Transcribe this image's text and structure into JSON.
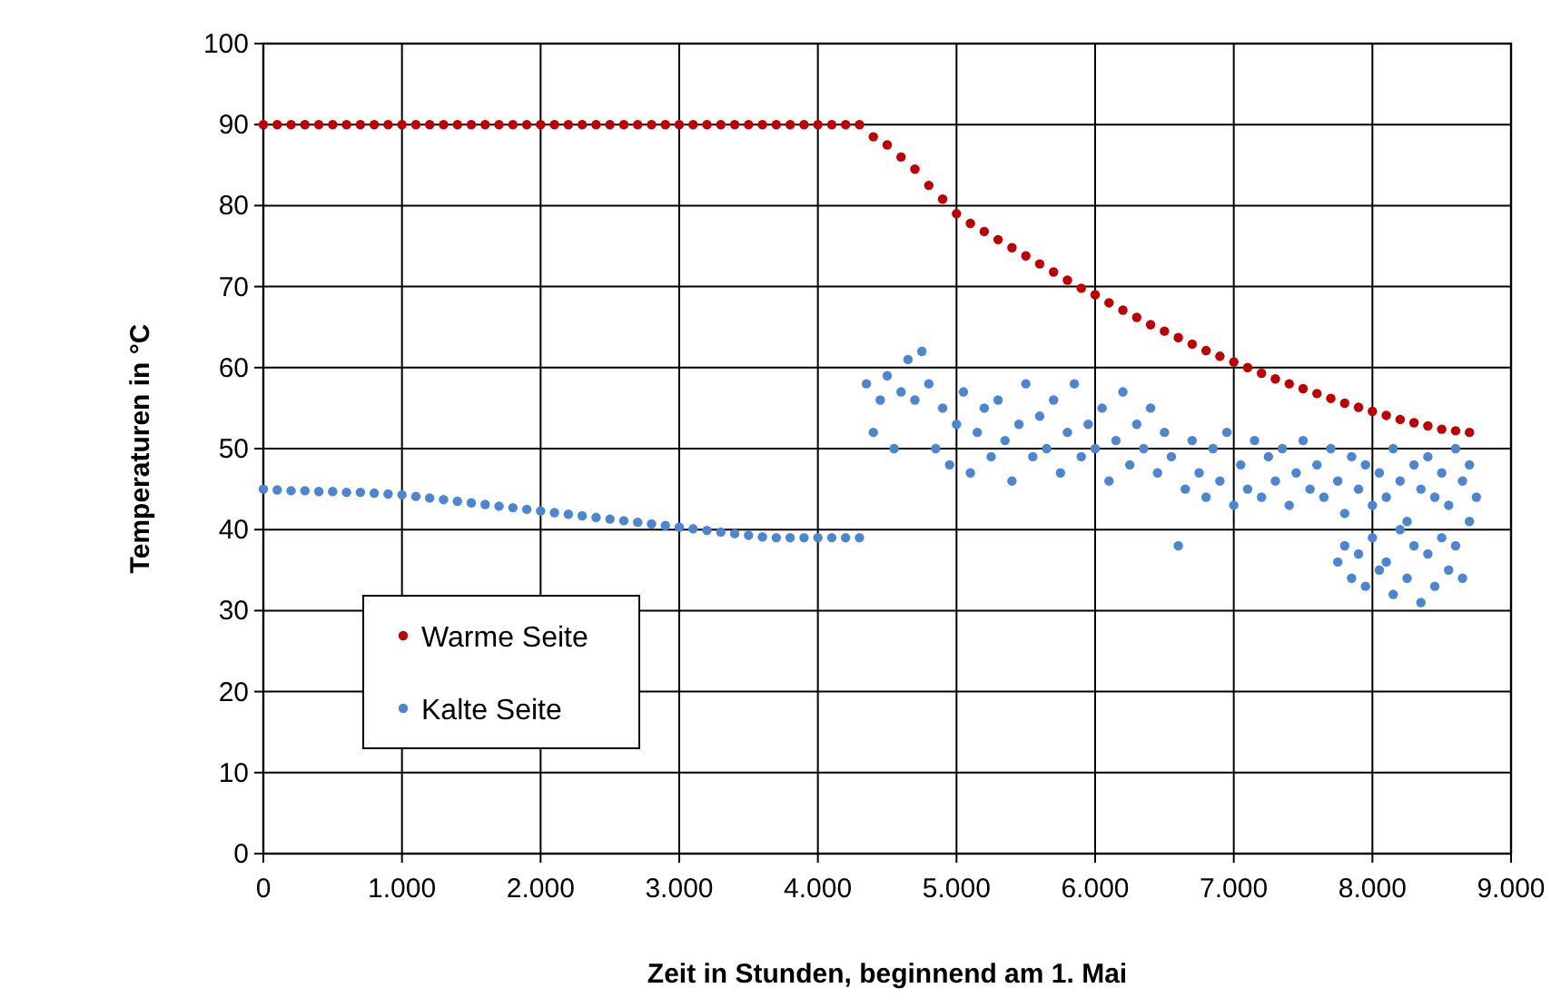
{
  "chart_data": {
    "type": "scatter",
    "xlabel": "Zeit in Stunden, beginnend am 1. Mai",
    "ylabel": "Temperaturen in °C",
    "xlim": [
      0,
      9000
    ],
    "ylim": [
      0,
      100
    ],
    "xticks": [
      0,
      {
        "value": 1000,
        "label": "1.000"
      },
      {
        "value": 2000,
        "label": "2.000"
      },
      {
        "value": 3000,
        "label": "3.000"
      },
      {
        "value": 4000,
        "label": "4.000"
      },
      {
        "value": 5000,
        "label": "5.000"
      },
      {
        "value": 6000,
        "label": "6.000"
      },
      {
        "value": 7000,
        "label": "7.000"
      },
      {
        "value": 8000,
        "label": "8.000"
      },
      {
        "value": 9000,
        "label": "9.000"
      }
    ],
    "yticks": [
      0,
      10,
      20,
      30,
      40,
      50,
      60,
      70,
      80,
      90,
      100
    ],
    "grid": true,
    "legend": "left",
    "marker": "circle",
    "series": [
      {
        "name": "Warme Seite",
        "color": "#c00000",
        "x": [
          0,
          100,
          200,
          300,
          400,
          500,
          600,
          700,
          800,
          900,
          1000,
          1100,
          1200,
          1300,
          1400,
          1500,
          1600,
          1700,
          1800,
          1900,
          2000,
          2100,
          2200,
          2300,
          2400,
          2500,
          2600,
          2700,
          2800,
          2900,
          3000,
          3100,
          3200,
          3300,
          3400,
          3500,
          3600,
          3700,
          3800,
          3900,
          4000,
          4100,
          4200,
          4300,
          4400,
          4500,
          4600,
          4700,
          4800,
          4900,
          5000,
          5100,
          5200,
          5300,
          5400,
          5500,
          5600,
          5700,
          5800,
          5900,
          6000,
          6100,
          6200,
          6300,
          6400,
          6500,
          6600,
          6700,
          6800,
          6900,
          7000,
          7100,
          7200,
          7300,
          7400,
          7500,
          7600,
          7700,
          7800,
          7900,
          8000,
          8100,
          8200,
          8300,
          8400,
          8500,
          8600,
          8700
        ],
        "values": [
          90,
          90,
          90,
          90,
          90,
          90,
          90,
          90,
          90,
          90,
          90,
          90,
          90,
          90,
          90,
          90,
          90,
          90,
          90,
          90,
          90,
          90,
          90,
          90,
          90,
          90,
          90,
          90,
          90,
          90,
          90,
          90,
          90,
          90,
          90,
          90,
          90,
          90,
          90,
          90,
          90,
          90,
          90,
          90,
          88.5,
          87.5,
          86,
          84.5,
          82.5,
          80.8,
          79,
          77.8,
          76.8,
          75.8,
          74.8,
          73.8,
          72.8,
          71.8,
          70.8,
          69.8,
          69,
          68,
          67.1,
          66.2,
          65.3,
          64.5,
          63.7,
          62.9,
          62.1,
          61.4,
          60.7,
          60,
          59.3,
          58.6,
          58,
          57.4,
          56.8,
          56.2,
          55.6,
          55.1,
          54.6,
          54.1,
          53.6,
          53.2,
          52.8,
          52.4,
          52.2,
          52
        ]
      },
      {
        "name": "Kalte Seite",
        "color": "#4a86d4",
        "x": [
          0,
          100,
          200,
          300,
          400,
          500,
          600,
          700,
          800,
          900,
          1000,
          1100,
          1200,
          1300,
          1400,
          1500,
          1600,
          1700,
          1800,
          1900,
          2000,
          2100,
          2200,
          2300,
          2400,
          2500,
          2600,
          2700,
          2800,
          2900,
          3000,
          3100,
          3200,
          3300,
          3400,
          3500,
          3600,
          3700,
          3800,
          3900,
          4000,
          4100,
          4200,
          4300,
          4350,
          4400,
          4450,
          4500,
          4550,
          4600,
          4650,
          4700,
          4750,
          4800,
          4850,
          4900,
          4950,
          5000,
          5050,
          5100,
          5150,
          5200,
          5250,
          5300,
          5350,
          5400,
          5450,
          5500,
          5550,
          5600,
          5650,
          5700,
          5750,
          5800,
          5850,
          5900,
          5950,
          6000,
          6050,
          6100,
          6150,
          6200,
          6250,
          6300,
          6350,
          6400,
          6450,
          6500,
          6550,
          6600,
          6650,
          6700,
          6750,
          6800,
          6850,
          6900,
          6950,
          7000,
          7050,
          7100,
          7150,
          7200,
          7250,
          7300,
          7350,
          7400,
          7450,
          7500,
          7550,
          7600,
          7650,
          7700,
          7750,
          7800,
          7850,
          7900,
          7950,
          8000,
          8050,
          8100,
          8150,
          8200,
          8250,
          8300,
          8350,
          8400,
          8450,
          8500,
          8550,
          8600,
          8650,
          8700,
          8750,
          7750,
          7850,
          7950,
          8050,
          8150,
          8250,
          8350,
          8450,
          8550,
          8650,
          7800,
          7900,
          8000,
          8100,
          8200,
          8300,
          8400,
          8500,
          8600,
          8700
        ],
        "values": [
          45,
          44.9,
          44.8,
          44.8,
          44.7,
          44.7,
          44.6,
          44.6,
          44.5,
          44.4,
          44.3,
          44.1,
          43.9,
          43.7,
          43.5,
          43.3,
          43.1,
          42.9,
          42.7,
          42.5,
          42.3,
          42.1,
          41.9,
          41.7,
          41.5,
          41.3,
          41.1,
          40.9,
          40.7,
          40.5,
          40.3,
          40.1,
          39.9,
          39.7,
          39.5,
          39.3,
          39.1,
          39,
          39,
          39,
          39,
          39,
          39,
          39,
          58,
          52,
          56,
          59,
          50,
          57,
          61,
          56,
          62,
          58,
          50,
          55,
          48,
          53,
          57,
          47,
          52,
          55,
          49,
          56,
          51,
          46,
          53,
          58,
          49,
          54,
          50,
          56,
          47,
          52,
          58,
          49,
          53,
          50,
          55,
          46,
          51,
          57,
          48,
          53,
          50,
          55,
          47,
          52,
          49,
          38,
          45,
          51,
          47,
          44,
          50,
          46,
          52,
          43,
          48,
          45,
          51,
          44,
          49,
          46,
          50,
          43,
          47,
          51,
          45,
          48,
          44,
          50,
          46,
          42,
          49,
          45,
          48,
          43,
          47,
          44,
          50,
          46,
          41,
          48,
          45,
          49,
          44,
          47,
          43,
          50,
          46,
          48,
          44,
          36,
          34,
          33,
          35,
          32,
          34,
          31,
          33,
          35,
          34,
          38,
          37,
          39,
          36,
          40,
          38,
          37,
          39,
          38,
          41
        ]
      }
    ]
  }
}
